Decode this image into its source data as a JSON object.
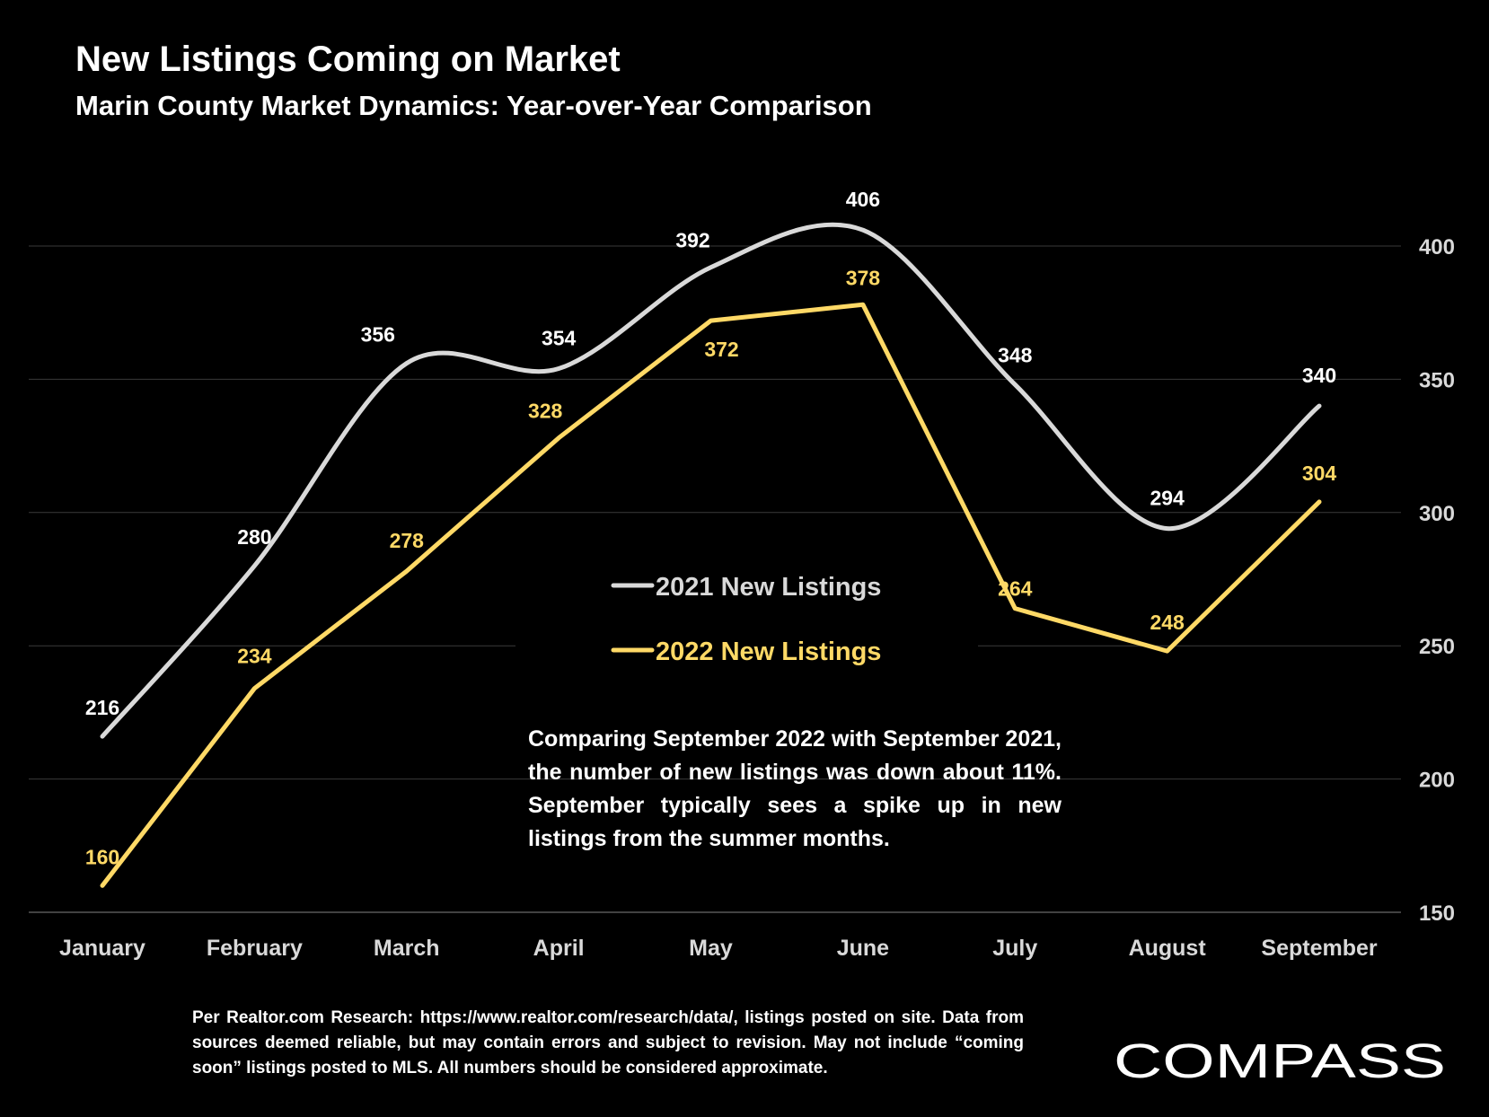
{
  "header": {
    "title": "New Listings Coming on Market",
    "subtitle": "Marin County Market Dynamics: Year-over-Year Comparison"
  },
  "chart_data": {
    "type": "line",
    "categories": [
      "January",
      "February",
      "March",
      "April",
      "May",
      "June",
      "July",
      "August",
      "September"
    ],
    "series": [
      {
        "name": "2021 New Listings",
        "values": [
          216,
          280,
          356,
          354,
          392,
          406,
          348,
          294,
          340
        ],
        "color": "#D9D9D9",
        "smooth": true
      },
      {
        "name": "2022 New Listings",
        "values": [
          160,
          234,
          278,
          328,
          372,
          378,
          264,
          248,
          304
        ],
        "color": "#FFD966",
        "smooth": false
      }
    ],
    "y_ticks": [
      150,
      200,
      250,
      300,
      350,
      400
    ],
    "ylim": [
      150,
      400
    ],
    "y_axis_position": "right",
    "grid": true,
    "legend_position": "center",
    "data_labels": true
  },
  "annotation": "Comparing September 2022 with September 2021, the number of new listings was down about 11%. September typically sees a spike up in new listings from the summer months.",
  "footer": {
    "source": "Per Realtor.com Research:  https://www.realtor.com/research/data/, listings posted on site. Data from sources deemed reliable, but may contain errors and subject to revision. May not include “coming soon” listings posted to MLS. All numbers should be considered approximate.",
    "logo_text": "COMPASS"
  }
}
